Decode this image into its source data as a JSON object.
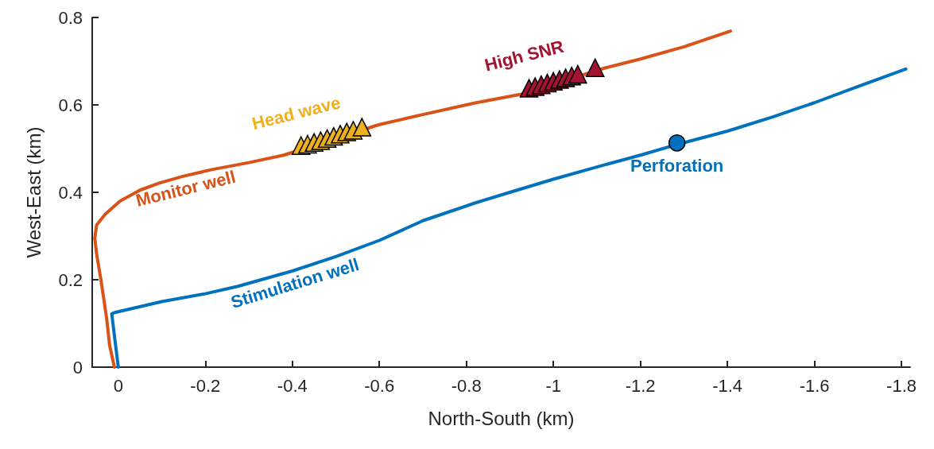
{
  "chart_data": {
    "type": "line",
    "xlabel": "North-South (km)",
    "ylabel": "West-East (km)",
    "xlim": [
      0.06,
      -1.82
    ],
    "ylim": [
      0,
      0.8
    ],
    "xticks": [
      0,
      -0.2,
      -0.4,
      -0.6,
      -0.8,
      -1,
      -1.2,
      -1.4,
      -1.6,
      -1.8
    ],
    "yticks": [
      0,
      0.2,
      0.4,
      0.6,
      0.8
    ],
    "grid": false,
    "legend": false,
    "series": [
      {
        "name": "Monitor well",
        "color": "#d95319",
        "marker": "none",
        "x": [
          0.009,
          0.02,
          0.027,
          0.04,
          0.05,
          0.054,
          0.05,
          0.03,
          -0.004,
          -0.05,
          -0.094,
          -0.15,
          -0.215,
          -0.3,
          -0.38,
          -0.6,
          -0.7,
          -0.818,
          -0.924,
          -1.12,
          -1.2,
          -1.3,
          -1.407
        ],
        "values": [
          0,
          0.05,
          0.113,
          0.2,
          0.26,
          0.295,
          0.325,
          0.35,
          0.38,
          0.405,
          0.421,
          0.437,
          0.452,
          0.468,
          0.485,
          0.555,
          0.578,
          0.604,
          0.624,
          0.685,
          0.705,
          0.733,
          0.769
        ]
      },
      {
        "name": "Stimulation well",
        "color": "#0072bd",
        "marker": "none",
        "x": [
          0,
          0.005,
          0.01,
          0.015,
          0.008,
          -0.1,
          -0.2,
          -0.275,
          -0.4,
          -0.5,
          -0.6,
          -0.7,
          -0.818,
          -0.9,
          -1.0,
          -1.1,
          -1.2,
          -1.29,
          -1.4,
          -1.5,
          -1.6,
          -1.7,
          -1.81
        ],
        "values": [
          0,
          0.04,
          0.08,
          0.122,
          0.125,
          0.15,
          0.168,
          0.185,
          0.22,
          0.253,
          0.29,
          0.335,
          0.375,
          0.4,
          0.43,
          0.458,
          0.485,
          0.511,
          0.54,
          0.571,
          0.605,
          0.642,
          0.682
        ]
      },
      {
        "name": "Head wave",
        "type": "scatter",
        "color": "#edb120",
        "marker": "triangle",
        "x": [
          -0.42,
          -0.435,
          -0.45,
          -0.465,
          -0.48,
          -0.495,
          -0.51,
          -0.525,
          -0.54,
          -0.56
        ],
        "values": [
          0.507,
          0.51,
          0.514,
          0.518,
          0.523,
          0.528,
          0.533,
          0.538,
          0.542,
          0.549
        ]
      },
      {
        "name": "High SNR",
        "type": "scatter",
        "color": "#a2142f",
        "marker": "triangle",
        "x": [
          -0.944,
          -0.958,
          -0.972,
          -0.986,
          -1.0,
          -1.014,
          -1.028,
          -1.042,
          -1.056,
          -1.096
        ],
        "values": [
          0.638,
          0.642,
          0.646,
          0.65,
          0.654,
          0.658,
          0.662,
          0.666,
          0.67,
          0.685
        ]
      },
      {
        "name": "Perforation",
        "type": "scatter",
        "color": "#0072bd",
        "marker": "circle",
        "x": [
          -1.284
        ],
        "values": [
          0.513
        ]
      }
    ]
  }
}
